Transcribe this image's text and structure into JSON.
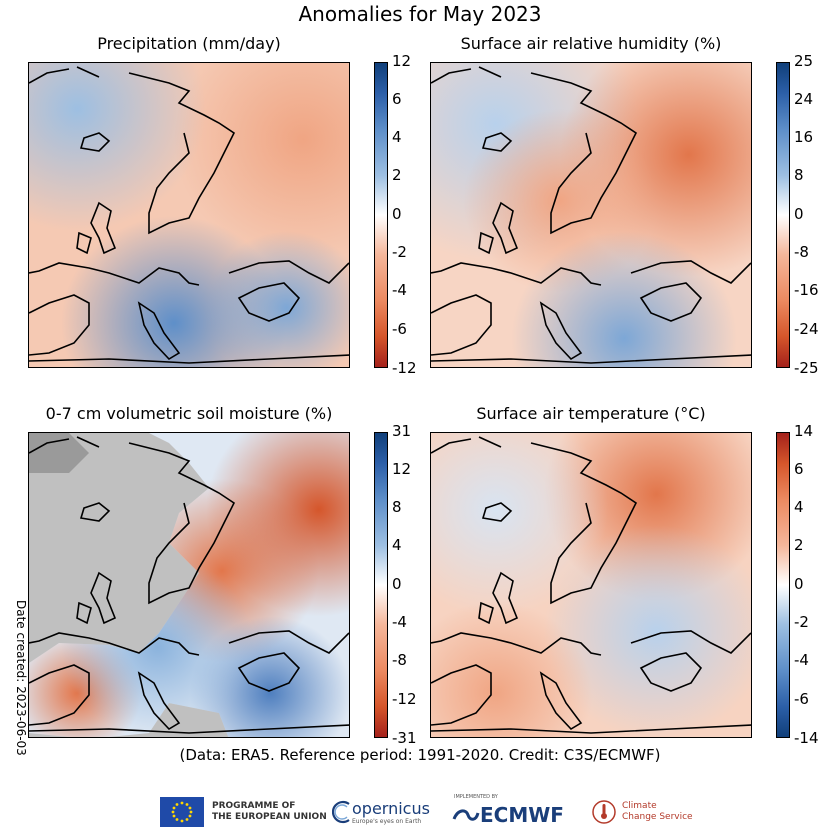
{
  "title": "Anomalies for May 2023",
  "date_created": "Date created: 2023-06-03",
  "credit": "(Data: ERA5.  Reference period: 1991-2020.  Credit: C3S/ECMWF)",
  "logos": {
    "eu_line1": "PROGRAMME OF",
    "eu_line2": "THE EUROPEAN UNION",
    "copernicus": "opernicus",
    "copernicus_sub": "Europe's eyes on Earth",
    "ecmwf_impl": "IMPLEMENTED BY",
    "ecmwf": "ECMWF",
    "c3s_line1": "Climate",
    "c3s_line2": "Change Service"
  },
  "colors": {
    "positive_wet": "#2c5fa8",
    "negative_dry": "#d5562b",
    "warm": "#d5562b",
    "cold": "#2c5fa8",
    "no_data": "#c0c0c0"
  },
  "panels": [
    {
      "title": "Precipitation (mm/day)",
      "scheme": "wet",
      "colorbar_ticks": [
        "12",
        "6",
        "4",
        "2",
        "0",
        "-2",
        "-4",
        "-6",
        "-12"
      ],
      "anomaly_pattern": {
        "north": "dry",
        "central": "dry",
        "south": "wet",
        "east": "dry"
      }
    },
    {
      "title": "Surface air relative humidity (%)",
      "scheme": "wet",
      "colorbar_ticks": [
        "25",
        "24",
        "16",
        "8",
        "0",
        "-8",
        "-16",
        "-24",
        "-25"
      ],
      "anomaly_pattern": {
        "north": "humid",
        "central": "dry",
        "south": "humid",
        "east": "dry"
      }
    },
    {
      "title": "0-7 cm volumetric soil moisture (%)",
      "scheme": "wet",
      "colorbar_ticks": [
        "31",
        "12",
        "8",
        "4",
        "0",
        "-4",
        "-8",
        "-12",
        "-31"
      ],
      "anomaly_pattern": {
        "north": "mixed",
        "central": "dry",
        "south": "wet",
        "east": "dry"
      }
    },
    {
      "title": "Surface air temperature (°C)",
      "scheme": "warm",
      "colorbar_ticks": [
        "14",
        "6",
        "4",
        "2",
        "0",
        "-2",
        "-4",
        "-6",
        "-14"
      ],
      "anomaly_pattern": {
        "north": "warm",
        "central": "cool",
        "south": "warm",
        "east": "cool"
      }
    }
  ]
}
